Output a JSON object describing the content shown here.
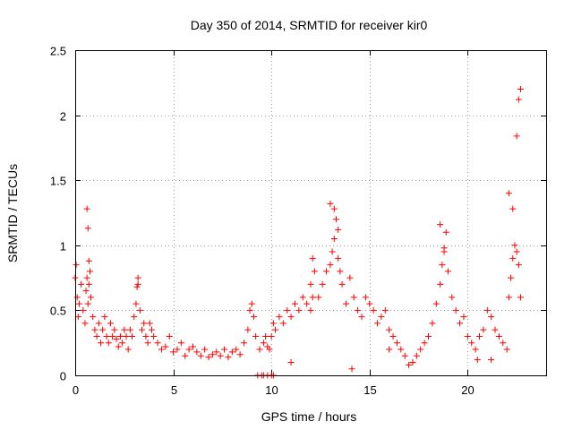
{
  "chart_data": {
    "type": "scatter",
    "title": "Day 350 of 2014, SRMTID for receiver kir0",
    "xlabel": "GPS time / hours",
    "ylabel": "SRMTID / TECUs",
    "xlim": [
      0,
      24
    ],
    "ylim": [
      0,
      2.5
    ],
    "x_ticks": [
      0,
      5,
      10,
      15,
      20
    ],
    "y_ticks": [
      0,
      0.5,
      1,
      1.5,
      2,
      2.5
    ],
    "x_tick_labels": [
      "0",
      "5",
      "10",
      "15",
      "20"
    ],
    "y_tick_labels": [
      "0",
      "0.5",
      "1",
      "1.5",
      "2",
      "2.5"
    ],
    "grid": true,
    "marker": "+",
    "series": [
      {
        "name": "kir0",
        "color": "#ff0000",
        "x": [
          0.0,
          0.05,
          0.1,
          0.15,
          0.2,
          0.3,
          0.4,
          0.5,
          0.55,
          0.6,
          0.65,
          0.7,
          0.75,
          0.8,
          0.9,
          1.0,
          1.1,
          1.2,
          1.3,
          1.4,
          1.5,
          1.6,
          1.7,
          1.8,
          1.9,
          2.0,
          2.1,
          2.2,
          2.3,
          2.4,
          2.5,
          2.6,
          2.7,
          2.8,
          2.9,
          3.0,
          3.1,
          3.2,
          3.3,
          3.4,
          3.5,
          3.6,
          3.7,
          3.8,
          3.9,
          4.0,
          4.2,
          4.4,
          4.6,
          4.8,
          5.0,
          5.2,
          5.4,
          5.6,
          5.8,
          6.0,
          6.2,
          6.4,
          6.6,
          6.8,
          7.0,
          7.2,
          7.4,
          7.6,
          7.8,
          8.0,
          8.2,
          8.4,
          8.6,
          8.8,
          8.9,
          9.0,
          9.1,
          9.2,
          9.4,
          9.6,
          9.7,
          9.8,
          9.9,
          10.0,
          10.1,
          10.2,
          10.4,
          10.6,
          10.8,
          11.0,
          11.2,
          11.4,
          11.6,
          11.8,
          12.0,
          12.1,
          12.2,
          12.4,
          12.6,
          12.8,
          13.0,
          13.1,
          13.2,
          13.3,
          13.4,
          13.5,
          13.6,
          13.8,
          14.0,
          14.2,
          14.4,
          14.6,
          14.8,
          15.0,
          15.2,
          15.4,
          15.6,
          15.8,
          16.0,
          16.2,
          16.4,
          16.6,
          16.8,
          17.0,
          17.2,
          17.4,
          17.6,
          17.8,
          18.0,
          18.2,
          18.4,
          18.6,
          18.7,
          18.8,
          18.9,
          19.0,
          19.2,
          19.4,
          19.6,
          19.8,
          20.0,
          20.2,
          20.4,
          20.6,
          20.8,
          21.0,
          21.2,
          21.4,
          21.6,
          21.8,
          22.0,
          22.1,
          22.2,
          22.3,
          22.4,
          22.5,
          22.6,
          22.7,
          9.3,
          9.5,
          9.6,
          9.8,
          10.0,
          10.1,
          13.0,
          13.2,
          13.4,
          18.6,
          18.8,
          22.1,
          22.3,
          22.5,
          22.6,
          22.7,
          0.6,
          0.65,
          0.7,
          3.2,
          3.15,
          12.0,
          12.1,
          16.0,
          11.0,
          14.1,
          20.5,
          21.2
        ],
        "y": [
          0.75,
          0.85,
          0.6,
          0.45,
          0.55,
          0.7,
          0.5,
          0.4,
          0.65,
          0.75,
          0.55,
          0.7,
          0.8,
          0.6,
          0.45,
          0.35,
          0.3,
          0.4,
          0.25,
          0.35,
          0.45,
          0.3,
          0.25,
          0.4,
          0.3,
          0.35,
          0.28,
          0.22,
          0.3,
          0.25,
          0.35,
          0.3,
          0.2,
          0.35,
          0.3,
          0.45,
          0.55,
          0.7,
          0.5,
          0.35,
          0.4,
          0.3,
          0.25,
          0.4,
          0.35,
          0.3,
          0.25,
          0.2,
          0.22,
          0.3,
          0.18,
          0.2,
          0.25,
          0.15,
          0.2,
          0.22,
          0.18,
          0.15,
          0.2,
          0.14,
          0.16,
          0.18,
          0.15,
          0.2,
          0.14,
          0.18,
          0.2,
          0.16,
          0.25,
          0.35,
          0.5,
          0.55,
          0.45,
          0.3,
          0.2,
          0.25,
          0.3,
          0.22,
          0.2,
          0.3,
          0.4,
          0.35,
          0.45,
          0.4,
          0.5,
          0.45,
          0.55,
          0.5,
          0.6,
          0.55,
          0.7,
          0.9,
          0.8,
          0.6,
          0.7,
          0.8,
          0.85,
          0.95,
          1.05,
          1.2,
          0.9,
          0.8,
          0.7,
          0.55,
          0.75,
          0.6,
          0.5,
          0.45,
          0.6,
          0.55,
          0.5,
          0.4,
          0.45,
          0.5,
          0.35,
          0.3,
          0.25,
          0.2,
          0.15,
          0.08,
          0.1,
          0.15,
          0.2,
          0.25,
          0.3,
          0.4,
          0.55,
          0.7,
          0.85,
          0.95,
          1.1,
          0.8,
          0.6,
          0.5,
          0.4,
          0.45,
          0.3,
          0.25,
          0.2,
          0.3,
          0.35,
          0.5,
          0.45,
          0.35,
          0.3,
          0.25,
          0.2,
          0.6,
          0.75,
          0.9,
          1.0,
          0.95,
          0.85,
          0.6,
          0.0,
          0.0,
          0.0,
          0.0,
          0.0,
          0.0,
          1.32,
          1.28,
          1.12,
          1.16,
          0.98,
          1.4,
          1.28,
          1.84,
          2.12,
          2.2,
          1.28,
          1.13,
          0.88,
          0.75,
          0.68,
          0.5,
          0.6,
          0.2,
          0.1,
          0.05,
          0.12,
          0.12
        ]
      }
    ]
  }
}
